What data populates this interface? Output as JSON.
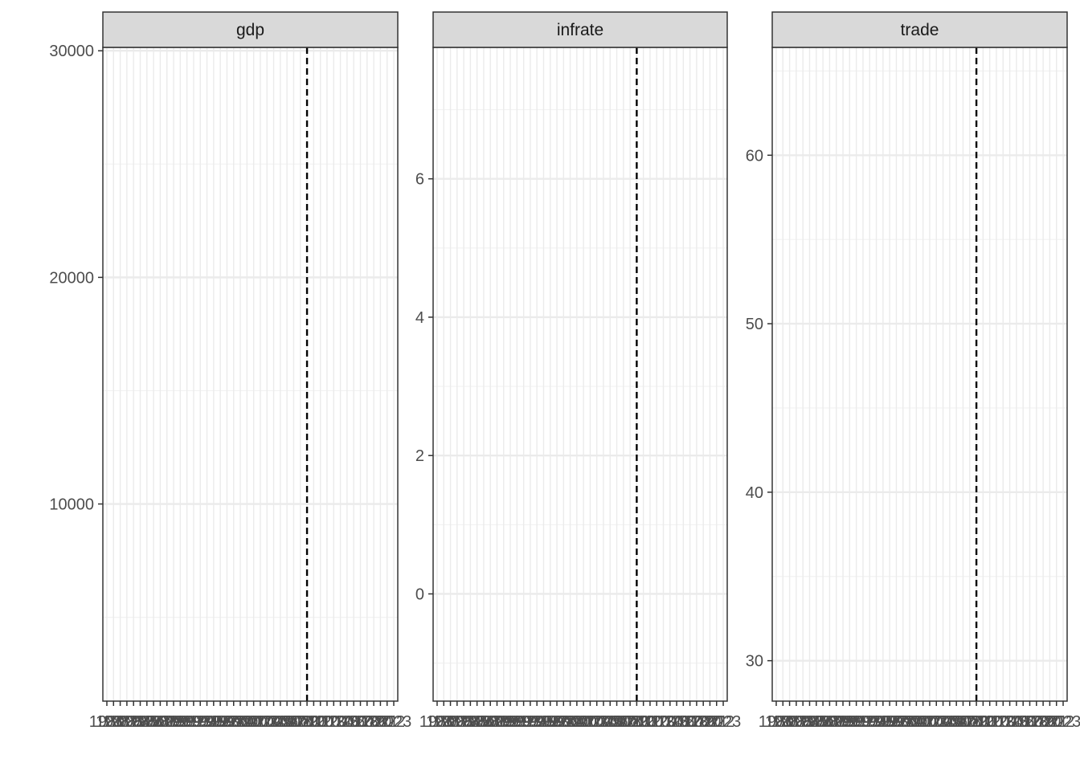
{
  "chart_data": {
    "type": "line",
    "facets": [
      {
        "name": "gdp",
        "ylim": [
          1300,
          30150
        ],
        "yticks_major": [
          10000,
          20000,
          30000
        ],
        "yticks_minor": [
          5000,
          15000,
          25000
        ],
        "series": []
      },
      {
        "name": "infrate",
        "ylim": [
          -1.55,
          7.9
        ],
        "yticks_major": [
          0,
          2,
          4,
          6
        ],
        "yticks_minor": [
          -1,
          1,
          3,
          5,
          7
        ],
        "series": []
      },
      {
        "name": "trade",
        "ylim": [
          27.6,
          66.4
        ],
        "yticks_major": [
          30,
          40,
          50,
          60
        ],
        "yticks_minor": [
          35,
          45,
          55,
          65
        ],
        "series": []
      }
    ],
    "x": {
      "start": 1980,
      "end": 2023,
      "tick_labels": [
        "1980",
        "1981",
        "1982",
        "1983",
        "1984",
        "1985",
        "1986",
        "1987",
        "1988",
        "1989",
        "1990",
        "1991",
        "1992",
        "1993",
        "1994",
        "1995",
        "1996",
        "1997",
        "1998",
        "1999",
        "2000",
        "2001",
        "2002",
        "2003",
        "2004",
        "2005",
        "2006",
        "2007",
        "2008",
        "2009",
        "2010",
        "2011",
        "2012",
        "2013",
        "2014",
        "2015",
        "2016",
        "2017",
        "2018",
        "2019",
        "2020",
        "2021",
        "2022",
        "2023"
      ]
    },
    "vline_x": 2010,
    "vline_style": "dashed",
    "grid": true,
    "legend": "none",
    "xlabel": "",
    "ylabel": "",
    "colors": {
      "panel_border": "#333333",
      "strip_fill": "#d9d9d9",
      "grid_major": "#ebebeb",
      "grid_minor": "#f2f2f2",
      "tick_text": "#4d4d4d",
      "vline": "#000000"
    }
  }
}
